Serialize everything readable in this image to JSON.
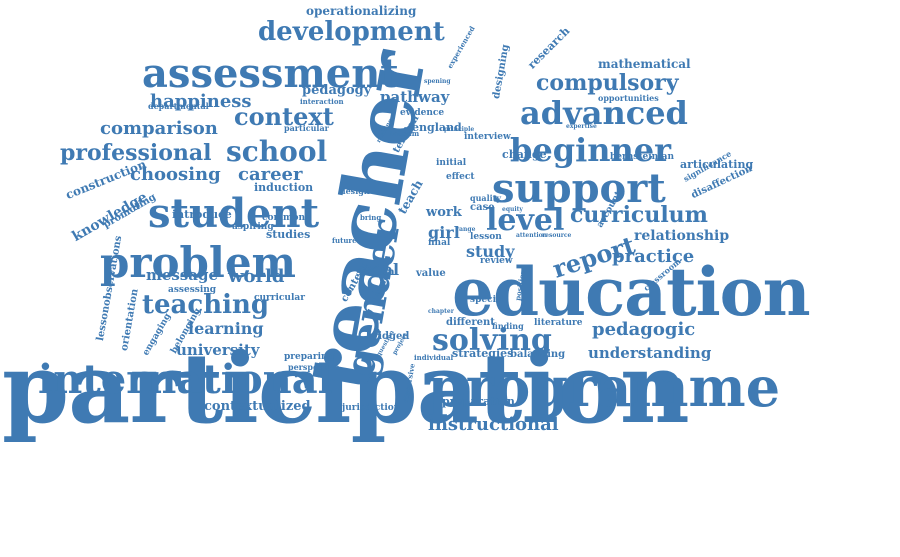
{
  "cloud": {
    "color": "#3f7ab3",
    "words": [
      {
        "text": "participation",
        "size": "xxl"
      },
      {
        "text": "teacher",
        "size": "xxl",
        "orientation": "vertical"
      },
      {
        "text": "education",
        "size": "xl"
      },
      {
        "text": "programme",
        "size": "xl"
      },
      {
        "text": "international",
        "size": "l"
      },
      {
        "text": "gender",
        "size": "l",
        "orientation": "vertical"
      },
      {
        "text": "assessment",
        "size": "l"
      },
      {
        "text": "problem",
        "size": "l"
      },
      {
        "text": "student",
        "size": "l"
      },
      {
        "text": "support",
        "size": "l"
      },
      {
        "text": "beginner",
        "size": "m"
      },
      {
        "text": "advanced",
        "size": "m"
      },
      {
        "text": "school",
        "size": "m"
      },
      {
        "text": "level",
        "size": "m"
      },
      {
        "text": "solving",
        "size": "m"
      },
      {
        "text": "teaching",
        "size": "m"
      },
      {
        "text": "development",
        "size": "m"
      },
      {
        "text": "professional",
        "size": "m"
      },
      {
        "text": "curriculum",
        "size": "m"
      },
      {
        "text": "compulsory",
        "size": "m"
      },
      {
        "text": "report",
        "size": "m"
      },
      {
        "text": "context",
        "size": "m"
      },
      {
        "text": "comparison",
        "size": "s"
      },
      {
        "text": "happiness",
        "size": "s"
      },
      {
        "text": "choosing",
        "size": "s"
      },
      {
        "text": "career",
        "size": "s"
      },
      {
        "text": "world",
        "size": "s"
      },
      {
        "text": "message",
        "size": "s"
      },
      {
        "text": "learning",
        "size": "s"
      },
      {
        "text": "university",
        "size": "s"
      },
      {
        "text": "pedagogic",
        "size": "s"
      },
      {
        "text": "understanding",
        "size": "s"
      },
      {
        "text": "practice",
        "size": "s"
      },
      {
        "text": "relationship",
        "size": "s"
      },
      {
        "text": "instructional",
        "size": "s"
      },
      {
        "text": "study",
        "size": "s"
      },
      {
        "text": "real",
        "size": "s"
      },
      {
        "text": "girl",
        "size": "s"
      },
      {
        "text": "pathway",
        "size": "xs"
      },
      {
        "text": "pedagogy",
        "size": "xs"
      },
      {
        "text": "knowledge",
        "size": "xs",
        "orientation": "slanted"
      },
      {
        "text": "construction",
        "size": "xs",
        "orientation": "slanted"
      },
      {
        "text": "operationalizing",
        "size": "xs"
      },
      {
        "text": "mathematical",
        "size": "xs"
      },
      {
        "text": "research",
        "size": "xs",
        "orientation": "slanted"
      },
      {
        "text": "designing",
        "size": "xs",
        "orientation": "vertical"
      },
      {
        "text": "england",
        "size": "xs"
      },
      {
        "text": "induction",
        "size": "xs"
      },
      {
        "text": "introduce",
        "size": "xs"
      },
      {
        "text": "studies",
        "size": "xs"
      },
      {
        "text": "articulating",
        "size": "xs"
      },
      {
        "text": "disaffection",
        "size": "xs",
        "orientation": "slanted"
      },
      {
        "text": "contextualized",
        "size": "xs"
      },
      {
        "text": "strategies",
        "size": "xs"
      },
      {
        "text": "preparation",
        "size": "xs"
      },
      {
        "text": "orientation",
        "size": "xs",
        "orientation": "vertical"
      },
      {
        "text": "lessonobservations",
        "size": "xs",
        "orientation": "vertical"
      },
      {
        "text": "work",
        "size": "xs"
      },
      {
        "text": "interview",
        "size": "xs"
      },
      {
        "text": "change",
        "size": "xs"
      },
      {
        "text": "bernsteinian",
        "size": "xxs"
      },
      {
        "text": "opportunities",
        "size": "xxs"
      },
      {
        "text": "departmental",
        "size": "xxs"
      },
      {
        "text": "particular",
        "size": "xxs"
      },
      {
        "text": "evidence",
        "size": "xxs"
      },
      {
        "text": "interaction",
        "size": "xxs"
      },
      {
        "text": "tension",
        "size": "xxs",
        "orientation": "slanted"
      },
      {
        "text": "initial",
        "size": "xxs"
      },
      {
        "text": "effect",
        "size": "xxs"
      },
      {
        "text": "promoting",
        "size": "xxs",
        "orientation": "slanted"
      },
      {
        "text": "aspiring",
        "size": "xxs"
      },
      {
        "text": "common",
        "size": "xxs"
      },
      {
        "text": "assessing",
        "size": "xxs"
      },
      {
        "text": "curricular",
        "size": "xxs"
      },
      {
        "text": "engaging",
        "size": "xxs",
        "orientation": "slanted"
      },
      {
        "text": "belonging",
        "size": "xxs",
        "orientation": "slanted"
      },
      {
        "text": "preparing",
        "size": "xxs"
      },
      {
        "text": "perspective",
        "size": "xxs"
      },
      {
        "text": "bridged",
        "size": "xxs"
      },
      {
        "text": "system",
        "size": "xxs"
      },
      {
        "text": "value",
        "size": "xxs"
      },
      {
        "text": "content",
        "size": "xxs"
      },
      {
        "text": "different",
        "size": "xxs"
      },
      {
        "text": "special",
        "size": "xxs"
      },
      {
        "text": "finding",
        "size": "xxs"
      },
      {
        "text": "literature",
        "size": "xxs"
      },
      {
        "text": "balancing",
        "size": "xxs"
      },
      {
        "text": "review",
        "size": "xxs"
      },
      {
        "text": "final",
        "size": "xxs"
      },
      {
        "text": "lesson",
        "size": "xxs"
      },
      {
        "text": "quality",
        "size": "xxs"
      },
      {
        "text": "case",
        "size": "xxs"
      },
      {
        "text": "jurisdiction",
        "size": "xxs"
      },
      {
        "text": "individual",
        "size": "xxs"
      },
      {
        "text": "design",
        "size": "xxs"
      },
      {
        "text": "future",
        "size": "xxs"
      },
      {
        "text": "bring",
        "size": "xxs"
      },
      {
        "text": "significance",
        "size": "xxs",
        "orientation": "slanted"
      },
      {
        "text": "classroom",
        "size": "xxs",
        "orientation": "slanted"
      },
      {
        "text": "experienced",
        "size": "xxs",
        "orientation": "slanted"
      },
      {
        "text": "interim",
        "size": "xxs"
      },
      {
        "text": "principle",
        "size": "xxs"
      },
      {
        "text": "expertise",
        "size": "xxs"
      },
      {
        "text": "account",
        "size": "xxs",
        "orientation": "slanted"
      },
      {
        "text": "position",
        "size": "xxs",
        "orientation": "vertical"
      },
      {
        "text": "discursive",
        "size": "xxs",
        "orientation": "vertical"
      },
      {
        "text": "teach",
        "size": "xxs",
        "orientation": "slanted"
      },
      {
        "text": "spening",
        "size": "xxs"
      },
      {
        "text": "ranking",
        "size": "xxs"
      },
      {
        "text": "attention",
        "size": "xxs"
      },
      {
        "text": "resource",
        "size": "xxs"
      },
      {
        "text": "equity",
        "size": "xxs"
      },
      {
        "text": "chapter",
        "size": "xxs"
      },
      {
        "text": "project",
        "size": "xxs"
      },
      {
        "text": "question",
        "size": "xxs"
      },
      {
        "text": "multiple",
        "size": "xxs"
      },
      {
        "text": "range",
        "size": "xxs"
      }
    ]
  }
}
